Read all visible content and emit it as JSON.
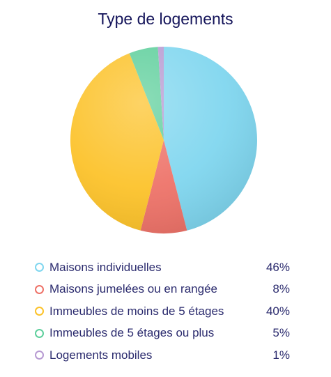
{
  "chart_data": {
    "type": "pie",
    "title": "Type de logements",
    "categories": [
      "Maisons individuelles",
      "Maisons jumelées ou en rangée",
      "Immeubles de moins de 5 étages",
      "Immeubles de 5 étages ou plus",
      "Logements mobiles"
    ],
    "values": [
      46,
      8,
      40,
      5,
      1
    ],
    "value_labels": [
      "46%",
      "8%",
      "40%",
      "5%",
      "1%"
    ],
    "colors": [
      "#7fd6ef",
      "#ee7268",
      "#fcc229",
      "#5ecf9c",
      "#b79ad2"
    ],
    "legend_placement": "bottom"
  }
}
